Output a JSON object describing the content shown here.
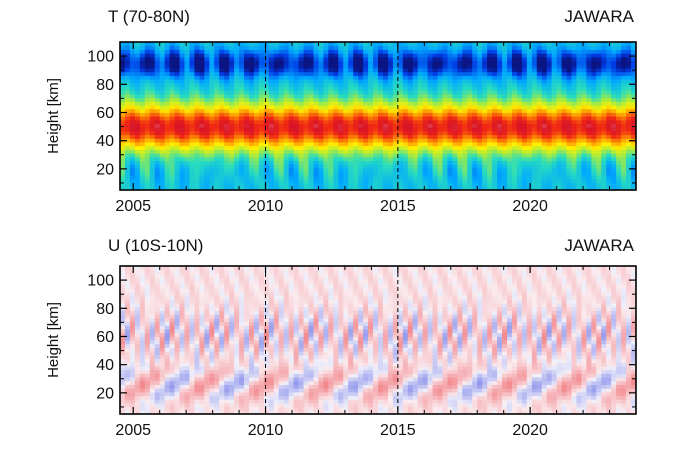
{
  "chart_data": [
    {
      "type": "heatmap",
      "title": "T (70-80N)",
      "model_label": "JAWARA",
      "variable": "temperature",
      "colormap": "rainbow",
      "xlabel": "",
      "ylabel": "Height [km]",
      "xlim": [
        2004.5,
        2024.0
      ],
      "ylim": [
        5,
        110
      ],
      "xticks": [
        2005,
        2010,
        2015,
        2020
      ],
      "yticks": [
        20,
        40,
        60,
        80,
        100
      ],
      "reference_lines_x": [
        2010,
        2015
      ],
      "annual_cycle": true,
      "features": {
        "stratopause_max_km": 50,
        "mesopause_min_km": 95
      }
    },
    {
      "type": "heatmap",
      "title": "U (10S-10N)",
      "model_label": "JAWARA",
      "variable": "zonal wind",
      "colormap": "blue-white-red",
      "xlabel": "",
      "ylabel": "Height [km]",
      "xlim": [
        2004.5,
        2024.0
      ],
      "ylim": [
        5,
        110
      ],
      "xticks": [
        2005,
        2010,
        2015,
        2020
      ],
      "yticks": [
        20,
        40,
        60,
        80,
        100
      ],
      "reference_lines_x": [
        2010,
        2015
      ],
      "qbo_period_years": 2.3,
      "semiannual_oscillation": true
    }
  ]
}
